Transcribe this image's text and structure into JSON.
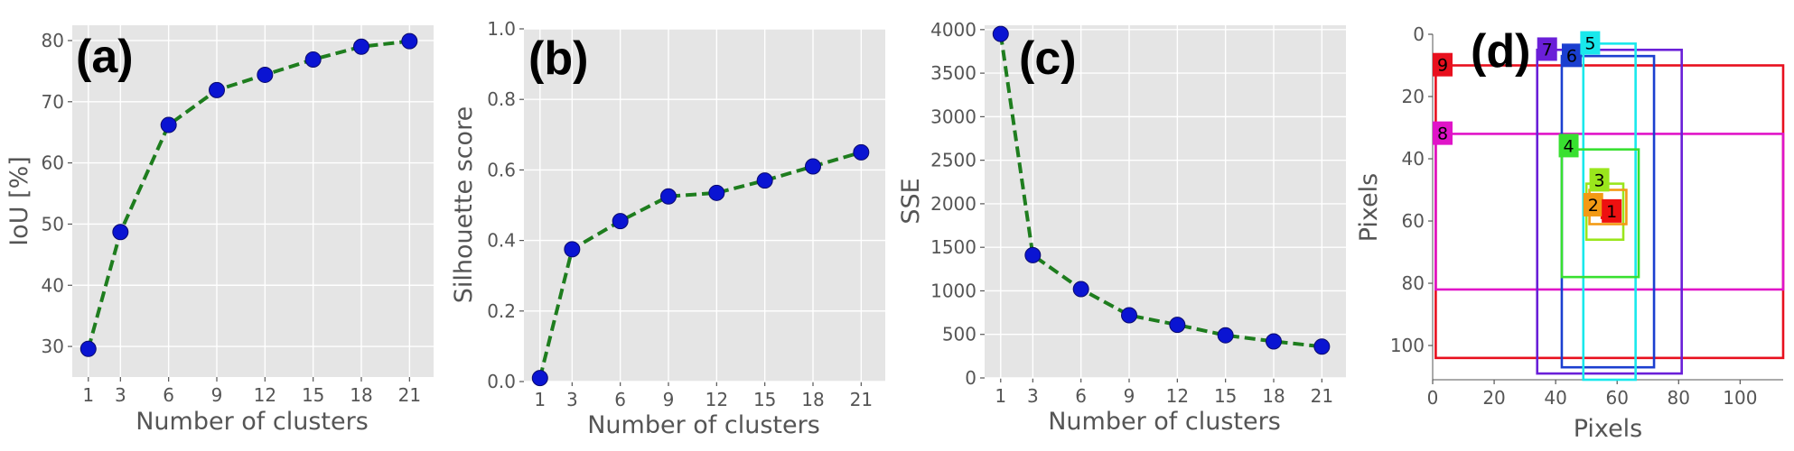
{
  "chart_data": [
    {
      "panel": "(a)",
      "type": "line",
      "x": [
        1,
        3,
        6,
        9,
        12,
        15,
        18,
        21
      ],
      "y": [
        29.6,
        48.7,
        66.2,
        71.9,
        74.4,
        76.9,
        79.0,
        79.9
      ],
      "xlabel": "Number of clusters",
      "ylabel": "IoU [%]",
      "xticks": [
        "1",
        "3",
        "6",
        "9",
        "12",
        "15",
        "18",
        "21"
      ],
      "yticks": [
        "30",
        "40",
        "50",
        "60",
        "70",
        "80"
      ],
      "xlim": [
        0,
        22.5
      ],
      "ylim": [
        25,
        82.5
      ],
      "grid": true,
      "line_style": "dashed",
      "line_color": "#1e7d1e",
      "marker_color": "#0a14d2"
    },
    {
      "panel": "(b)",
      "type": "line",
      "x": [
        1,
        3,
        6,
        9,
        12,
        15,
        18,
        21
      ],
      "y": [
        0.01,
        0.375,
        0.455,
        0.525,
        0.535,
        0.57,
        0.61,
        0.65
      ],
      "xlabel": "Number of clusters",
      "ylabel": "Silhouette score",
      "xticks": [
        "1",
        "3",
        "6",
        "9",
        "12",
        "15",
        "18",
        "21"
      ],
      "yticks": [
        "0.0",
        "0.2",
        "0.4",
        "0.6",
        "0.8",
        "1.0"
      ],
      "xlim": [
        0,
        22.5
      ],
      "ylim": [
        0,
        1.0
      ],
      "grid": true,
      "line_style": "dashed",
      "line_color": "#1e7d1e",
      "marker_color": "#0a14d2"
    },
    {
      "panel": "(c)",
      "type": "line",
      "x": [
        1,
        3,
        6,
        9,
        12,
        15,
        18,
        21
      ],
      "y": [
        3950,
        1410,
        1020,
        720,
        610,
        490,
        420,
        360
      ],
      "xlabel": "Number of clusters",
      "ylabel": "SSE",
      "xticks": [
        "1",
        "3",
        "6",
        "9",
        "12",
        "15",
        "18",
        "21"
      ],
      "yticks": [
        "0",
        "500",
        "1000",
        "1500",
        "2000",
        "2500",
        "3000",
        "3500",
        "4000"
      ],
      "xlim": [
        0,
        22.5
      ],
      "ylim": [
        0,
        4050
      ],
      "grid": true,
      "line_style": "dashed",
      "line_color": "#1e7d1e",
      "marker_color": "#0a14d2"
    },
    {
      "panel": "(d)",
      "type": "scatter",
      "description": "anchor boxes",
      "xlabel": "Pixels",
      "ylabel": "Pixels",
      "xticks": [
        "0",
        "20",
        "40",
        "60",
        "80",
        "100"
      ],
      "yticks": [
        "0",
        "20",
        "40",
        "60",
        "80",
        "100"
      ],
      "xlim": [
        0,
        114
      ],
      "ylim": [
        111,
        0
      ],
      "grid": false,
      "boxes": [
        {
          "label": "9",
          "x0": 1,
          "y0": 10,
          "x1": 114,
          "y1": 104,
          "color": "#e8101e",
          "tag": [
            0,
            6
          ]
        },
        {
          "label": "8",
          "x0": 1,
          "y0": 32,
          "x1": 114,
          "y1": 82,
          "color": "#e014c8",
          "tag": [
            0,
            28
          ]
        },
        {
          "label": "7",
          "x0": 34,
          "y0": 5,
          "x1": 81,
          "y1": 109,
          "color": "#6a1fd8",
          "tag": [
            34,
            1
          ]
        },
        {
          "label": "6",
          "x0": 42,
          "y0": 7,
          "x1": 72,
          "y1": 107,
          "color": "#1b3fd0",
          "tag": [
            42,
            3
          ]
        },
        {
          "label": "5",
          "x0": 49,
          "y0": 3,
          "x1": 66,
          "y1": 111,
          "color": "#19e8ec",
          "tag": [
            48,
            -1
          ]
        },
        {
          "label": "4",
          "x0": 42,
          "y0": 37,
          "x1": 67,
          "y1": 78,
          "color": "#38e030",
          "tag": [
            41,
            32
          ]
        },
        {
          "label": "3",
          "x0": 50,
          "y0": 48,
          "x1": 62,
          "y1": 66,
          "color": "#9ae61c",
          "tag": [
            51,
            43
          ]
        },
        {
          "label": "2",
          "x0": 51,
          "y0": 50,
          "x1": 63,
          "y1": 61,
          "color": "#f39a14",
          "tag": [
            49,
            51
          ]
        },
        {
          "label": "1",
          "x0": 55,
          "y0": 54,
          "x1": 59,
          "y1": 59,
          "color": "#ee1010",
          "tag": [
            55,
            53
          ]
        }
      ]
    }
  ]
}
